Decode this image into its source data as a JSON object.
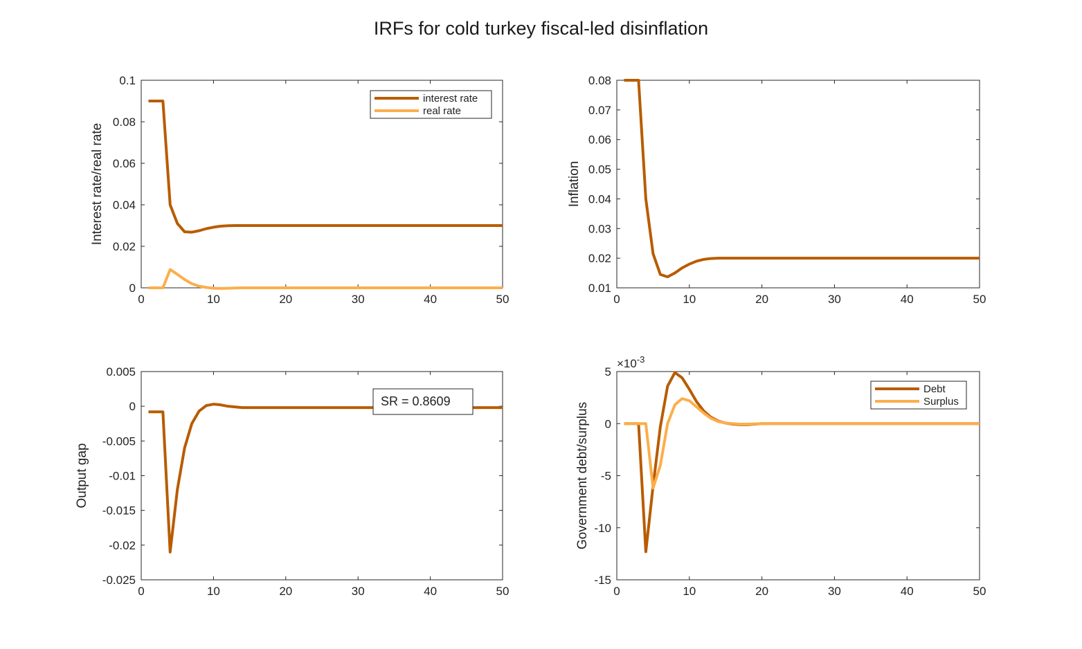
{
  "figure": {
    "title": "IRFs for cold turkey fiscal-led disinflation"
  },
  "colors": {
    "dark_orange": "#b85c00",
    "light_orange": "#fcae4b",
    "axis": "#262626",
    "background": "#ffffff"
  },
  "chart_data": [
    {
      "type": "line",
      "panel": "top-left",
      "xlabel": "",
      "ylabel": "Interest rate/real rate",
      "xlim": [
        0,
        50
      ],
      "ylim": [
        0,
        0.1
      ],
      "xticks": [
        0,
        10,
        20,
        30,
        40,
        50
      ],
      "yticks": [
        0,
        0.02,
        0.04,
        0.06,
        0.08,
        0.1
      ],
      "ytick_labels": [
        "0",
        "0.02",
        "0.04",
        "0.06",
        "0.08",
        "0.1"
      ],
      "legend": {
        "position": "top-right",
        "entries": [
          "interest rate",
          "real rate"
        ]
      },
      "series": [
        {
          "name": "interest rate",
          "color": "#b85c00",
          "x": [
            1,
            2,
            3,
            4,
            5,
            6,
            7,
            8,
            9,
            10,
            11,
            12,
            13,
            14,
            15,
            20,
            30,
            40,
            50
          ],
          "y": [
            0.09,
            0.09,
            0.09,
            0.04,
            0.031,
            0.027,
            0.0268,
            0.0275,
            0.0285,
            0.0292,
            0.0297,
            0.0299,
            0.03,
            0.03,
            0.03,
            0.03,
            0.03,
            0.03,
            0.03
          ]
        },
        {
          "name": "real rate",
          "color": "#fcae4b",
          "x": [
            1,
            2,
            3,
            4,
            5,
            6,
            7,
            8,
            9,
            10,
            11,
            12,
            13,
            14,
            15,
            20,
            30,
            40,
            50
          ],
          "y": [
            0,
            0,
            0,
            0.0088,
            0.0065,
            0.004,
            0.002,
            0.0008,
            0.0002,
            -0.0002,
            -0.0003,
            -0.0002,
            -0.0001,
            0,
            0,
            0,
            0,
            0,
            0
          ]
        }
      ]
    },
    {
      "type": "line",
      "panel": "top-right",
      "xlabel": "",
      "ylabel": "Inflation",
      "xlim": [
        0,
        50
      ],
      "ylim": [
        0.01,
        0.08
      ],
      "xticks": [
        0,
        10,
        20,
        30,
        40,
        50
      ],
      "yticks": [
        0.01,
        0.02,
        0.03,
        0.04,
        0.05,
        0.06,
        0.07,
        0.08
      ],
      "ytick_labels": [
        "0.01",
        "0.02",
        "0.03",
        "0.04",
        "0.05",
        "0.06",
        "0.07",
        "0.08"
      ],
      "series": [
        {
          "color": "#b85c00",
          "x": [
            1,
            2,
            3,
            4,
            5,
            6,
            7,
            8,
            9,
            10,
            11,
            12,
            13,
            14,
            15,
            20,
            30,
            40,
            50
          ],
          "y": [
            0.08,
            0.08,
            0.08,
            0.04,
            0.0215,
            0.0145,
            0.0137,
            0.015,
            0.0167,
            0.018,
            0.019,
            0.0196,
            0.0199,
            0.02,
            0.02,
            0.02,
            0.02,
            0.02,
            0.02
          ]
        }
      ]
    },
    {
      "type": "line",
      "panel": "bottom-left",
      "xlabel": "",
      "ylabel": "Output gap",
      "xlim": [
        0,
        50
      ],
      "ylim": [
        -0.025,
        0.005
      ],
      "xticks": [
        0,
        10,
        20,
        30,
        40,
        50
      ],
      "yticks": [
        -0.025,
        -0.02,
        -0.015,
        -0.01,
        -0.005,
        0,
        0.005
      ],
      "ytick_labels": [
        "-0.025",
        "-0.02",
        "-0.015",
        "-0.01",
        "-0.005",
        "0",
        "0.005"
      ],
      "annotation": "SR = 0.8609",
      "series": [
        {
          "color": "#b85c00",
          "x": [
            1,
            2,
            3,
            4,
            5,
            6,
            7,
            8,
            9,
            10,
            11,
            12,
            13,
            14,
            15,
            16,
            20,
            30,
            40,
            50
          ],
          "y": [
            -0.0008,
            -0.0008,
            -0.0008,
            -0.021,
            -0.012,
            -0.006,
            -0.0025,
            -0.0007,
            0.0001,
            0.0003,
            0.0002,
            0,
            -0.0001,
            -0.0002,
            -0.0002,
            -0.0002,
            -0.0002,
            -0.0002,
            -0.0002,
            -0.0002
          ]
        }
      ]
    },
    {
      "type": "line",
      "panel": "bottom-right",
      "xlabel": "",
      "ylabel": "Government debt/surplus",
      "xlim": [
        0,
        50
      ],
      "ylim": [
        -15,
        5
      ],
      "y_multiplier": "×10⁻³",
      "multiplier_base": "×10",
      "multiplier_exp": "-3",
      "xticks": [
        0,
        10,
        20,
        30,
        40,
        50
      ],
      "yticks": [
        -15,
        -10,
        -5,
        0,
        5
      ],
      "ytick_labels": [
        "-15",
        "-10",
        "-5",
        "0",
        "5"
      ],
      "legend": {
        "position": "top-right",
        "entries": [
          "Debt",
          "Surplus"
        ]
      },
      "series": [
        {
          "name": "Debt",
          "color": "#b85c00",
          "x": [
            1,
            2,
            3,
            4,
            5,
            6,
            7,
            8,
            9,
            10,
            11,
            12,
            13,
            14,
            15,
            16,
            17,
            18,
            20,
            30,
            40,
            50
          ],
          "y": [
            0,
            0,
            0,
            -12.3,
            -6,
            -0.3,
            3.6,
            4.9,
            4.4,
            3.3,
            2.1,
            1.2,
            0.6,
            0.25,
            0.05,
            -0.05,
            -0.1,
            -0.1,
            0,
            0,
            0,
            0
          ]
        },
        {
          "name": "Surplus",
          "color": "#fcae4b",
          "x": [
            1,
            2,
            3,
            4,
            5,
            6,
            7,
            8,
            9,
            10,
            11,
            12,
            13,
            14,
            15,
            16,
            17,
            18,
            20,
            30,
            40,
            50
          ],
          "y": [
            0,
            0,
            0,
            0,
            -6.2,
            -4,
            0,
            1.8,
            2.4,
            2.2,
            1.6,
            1,
            0.5,
            0.2,
            0.05,
            0,
            -0.05,
            -0.05,
            0,
            0,
            0,
            0
          ]
        }
      ]
    }
  ]
}
